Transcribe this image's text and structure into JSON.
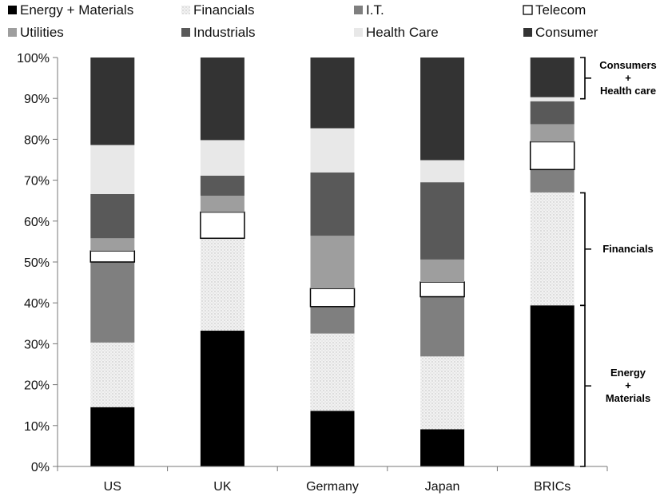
{
  "chart_data": {
    "type": "bar",
    "stacked": true,
    "categories": [
      "US",
      "UK",
      "Germany",
      "Japan",
      "BRICs"
    ],
    "ylim": [
      0,
      100
    ],
    "yticks": [
      "0%",
      "10%",
      "20%",
      "30%",
      "40%",
      "50%",
      "60%",
      "70%",
      "80%",
      "90%",
      "100%"
    ],
    "grid": false,
    "legend_position": "top",
    "series": [
      {
        "name": "Energy + Materials",
        "color": "#000000",
        "pattern": "solid",
        "values": [
          14.5,
          33.2,
          13.6,
          9.1,
          39.4
        ]
      },
      {
        "name": "Financials",
        "color": "#ebebeb",
        "pattern": "dots",
        "values": [
          15.8,
          22.5,
          18.9,
          17.8,
          27.6
        ]
      },
      {
        "name": "I.T.",
        "color": "#7f7f7f",
        "pattern": "solid",
        "values": [
          19.7,
          0.1,
          6.6,
          14.6,
          5.6
        ]
      },
      {
        "name": "Telecom",
        "color": "#ffffff",
        "pattern": "outline",
        "values": [
          2.7,
          6.4,
          4.4,
          3.6,
          6.8
        ]
      },
      {
        "name": "Utilities",
        "color": "#9e9e9e",
        "pattern": "solid",
        "values": [
          3.1,
          4.0,
          12.9,
          5.5,
          4.3
        ]
      },
      {
        "name": "Industrials",
        "color": "#595959",
        "pattern": "solid",
        "values": [
          10.8,
          4.9,
          15.5,
          18.9,
          5.6
        ]
      },
      {
        "name": "Health Care",
        "color": "#e8e8e8",
        "pattern": "solid",
        "values": [
          12.0,
          8.7,
          10.8,
          5.4,
          1.0
        ]
      },
      {
        "name": "Consumer",
        "color": "#333333",
        "pattern": "solid",
        "values": [
          21.4,
          20.2,
          17.3,
          25.1,
          9.7
        ]
      }
    ],
    "annotations": [
      {
        "lines": [
          "Consumers",
          "+",
          "Health care"
        ],
        "from": 89.9,
        "to": 100
      },
      {
        "lines": [
          "Financials"
        ],
        "from": 66.9,
        "to": 66.9
      },
      {
        "lines": [
          "Energy",
          "+",
          "Materials"
        ],
        "from": 0,
        "to": 39.4
      }
    ]
  }
}
